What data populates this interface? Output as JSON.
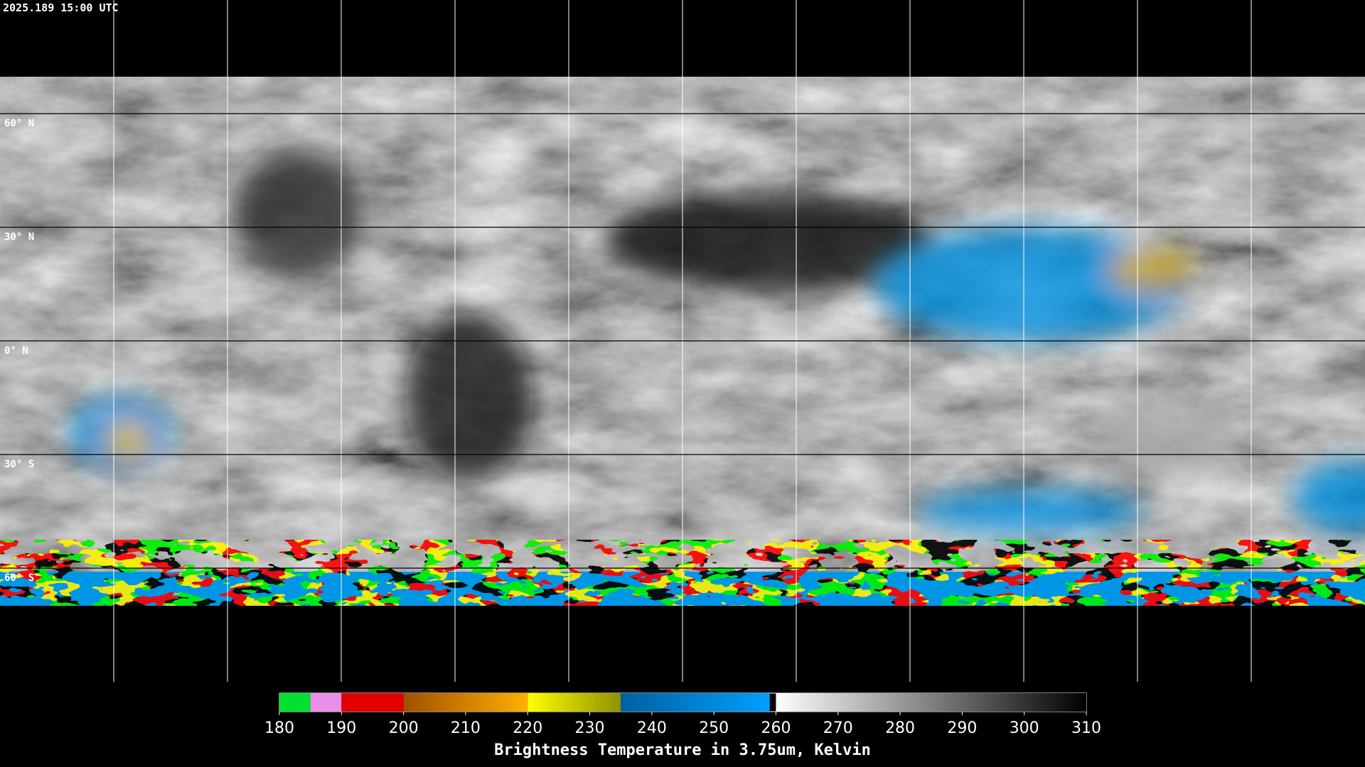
{
  "header": {
    "timestamp": "2025.189 15:00 UTC"
  },
  "map": {
    "latitude_labels": [
      "60° N",
      "30° N",
      "0° N",
      "30° S",
      "60° S"
    ]
  },
  "colorbar": {
    "range": [
      180,
      310
    ],
    "ticks": [
      180,
      190,
      200,
      210,
      220,
      230,
      240,
      250,
      260,
      270,
      280,
      290,
      300,
      310
    ],
    "segments": [
      {
        "from": 180,
        "to": 185,
        "colors": [
          "#00e030",
          "#00e030"
        ]
      },
      {
        "from": 185,
        "to": 190,
        "colors": [
          "#e890e8",
          "#e890e8"
        ]
      },
      {
        "from": 190,
        "to": 200,
        "colors": [
          "#e00000",
          "#e00000"
        ]
      },
      {
        "from": 200,
        "to": 220,
        "colors": [
          "#a05000",
          "#ffb000"
        ]
      },
      {
        "from": 220,
        "to": 235,
        "colors": [
          "#ffff00",
          "#909000"
        ]
      },
      {
        "from": 235,
        "to": 259,
        "colors": [
          "#0060a0",
          "#00a0ff"
        ]
      },
      {
        "from": 260,
        "to": 310,
        "colors": [
          "#ffffff",
          "#000000"
        ]
      }
    ],
    "title": "Brightness Temperature in 3.75um, Kelvin"
  }
}
